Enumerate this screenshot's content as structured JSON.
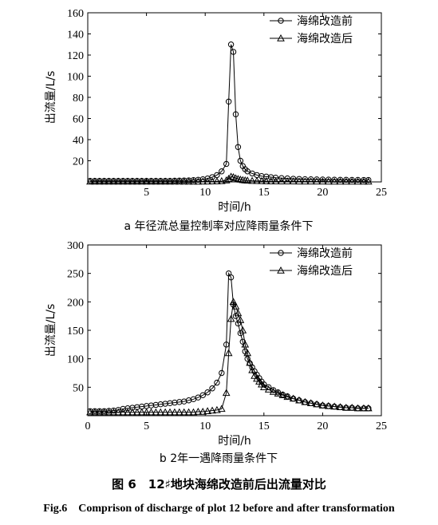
{
  "figure": {
    "caption_cn": "图 6　12♯地块海绵改造前后出流量对比",
    "caption_en": "Fig.6　Comprison of discharge of plot 12 before and after transformation"
  },
  "chart_data": [
    {
      "type": "line",
      "subtitle": "a 年径流总量控制率对应降雨量条件下",
      "xlabel": "时间/h",
      "ylabel": "出流量/L/s",
      "xlim": [
        0,
        25
      ],
      "ylim": [
        0,
        160
      ],
      "xticks": [
        5,
        10,
        15,
        20,
        25
      ],
      "yticks": [
        20,
        40,
        60,
        80,
        100,
        120,
        140,
        160
      ],
      "grid": false,
      "legend_position": "top-right",
      "series": [
        {
          "name": "海绵改造前",
          "marker": "circle",
          "x": [
            0.2,
            0.6,
            1.0,
            1.4,
            1.8,
            2.2,
            2.6,
            3.0,
            3.4,
            3.8,
            4.2,
            4.6,
            5.0,
            5.4,
            5.8,
            6.2,
            6.6,
            7.0,
            7.4,
            7.8,
            8.2,
            8.6,
            9.0,
            9.4,
            9.8,
            10.2,
            10.6,
            11.0,
            11.4,
            11.8,
            12.0,
            12.2,
            12.4,
            12.6,
            12.8,
            13.0,
            13.2,
            13.4,
            13.6,
            14.0,
            14.4,
            14.8,
            15.2,
            15.6,
            16.0,
            16.5,
            17.0,
            17.5,
            18.0,
            18.5,
            19.0,
            19.5,
            20.0,
            20.5,
            21.0,
            21.5,
            22.0,
            22.5,
            23.0,
            23.5,
            23.9
          ],
          "y": [
            1,
            1,
            1,
            1,
            1,
            1,
            1,
            1,
            1,
            1,
            1,
            1,
            1,
            1,
            1,
            1,
            1,
            1,
            1.2,
            1.3,
            1.4,
            1.5,
            1.7,
            2,
            2.5,
            3.2,
            4.5,
            6.5,
            10,
            17,
            76,
            130,
            123,
            64,
            33,
            20,
            15,
            12,
            10,
            8,
            6.5,
            5.5,
            5,
            4.5,
            4,
            3.6,
            3.3,
            3,
            2.8,
            2.6,
            2.5,
            2.4,
            2.3,
            2.2,
            2.1,
            2,
            2,
            1.9,
            1.9,
            1.8,
            1.8
          ]
        },
        {
          "name": "海绵改造后",
          "marker": "triangle",
          "x": [
            0.2,
            0.6,
            1.0,
            1.4,
            1.8,
            2.2,
            2.6,
            3.0,
            3.4,
            3.8,
            4.2,
            4.6,
            5.0,
            5.4,
            5.8,
            6.2,
            6.6,
            7.0,
            7.4,
            7.8,
            8.2,
            8.6,
            9.0,
            9.4,
            9.8,
            10.2,
            10.6,
            11.0,
            11.4,
            11.8,
            12.0,
            12.2,
            12.4,
            12.6,
            12.8,
            13.0,
            13.2,
            13.4,
            13.6,
            14.0,
            14.4,
            14.8,
            15.2,
            15.6,
            16.0,
            16.5,
            17.0,
            17.5,
            18.0,
            18.5,
            19.0,
            19.5,
            20.0,
            20.5,
            21.0,
            21.5,
            22.0,
            22.5,
            23.0,
            23.5,
            23.9
          ],
          "y": [
            0.3,
            0.3,
            0.3,
            0.3,
            0.3,
            0.3,
            0.3,
            0.3,
            0.3,
            0.3,
            0.3,
            0.3,
            0.3,
            0.3,
            0.3,
            0.3,
            0.3,
            0.3,
            0.3,
            0.3,
            0.3,
            0.3,
            0.3,
            0.3,
            0.4,
            0.4,
            0.5,
            0.6,
            0.8,
            1.5,
            3,
            5,
            4.5,
            3.5,
            2.8,
            2.2,
            1.8,
            1.5,
            1.3,
            1,
            0.9,
            0.8,
            0.7,
            0.6,
            0.6,
            0.5,
            0.5,
            0.5,
            0.4,
            0.4,
            0.4,
            0.4,
            0.4,
            0.3,
            0.3,
            0.3,
            0.3,
            0.3,
            0.3,
            0.3,
            0.3
          ]
        }
      ]
    },
    {
      "type": "line",
      "subtitle": "b 2年一遇降雨量条件下",
      "xlabel": "时间/h",
      "ylabel": "出流量/L/s",
      "xlim": [
        0,
        25
      ],
      "ylim": [
        0,
        300
      ],
      "xticks": [
        0,
        5,
        10,
        15,
        20,
        25
      ],
      "yticks": [
        50,
        100,
        150,
        200,
        250,
        300
      ],
      "grid": false,
      "legend_position": "top-right",
      "series": [
        {
          "name": "海绵改造前",
          "marker": "circle",
          "x": [
            0.2,
            0.6,
            1.0,
            1.4,
            1.8,
            2.2,
            2.6,
            3.0,
            3.4,
            3.8,
            4.2,
            4.6,
            5.0,
            5.4,
            5.8,
            6.2,
            6.6,
            7.0,
            7.4,
            7.8,
            8.2,
            8.6,
            9.0,
            9.4,
            9.8,
            10.2,
            10.6,
            11.0,
            11.4,
            11.8,
            12.0,
            12.2,
            12.4,
            12.6,
            12.8,
            13.0,
            13.2,
            13.4,
            13.6,
            13.8,
            14.0,
            14.2,
            14.4,
            14.6,
            14.8,
            15.0,
            15.4,
            15.8,
            16.2,
            16.6,
            17.0,
            17.5,
            18.0,
            18.5,
            19.0,
            19.5,
            20.0,
            20.5,
            21.0,
            21.5,
            22.0,
            22.5,
            23.0,
            23.5,
            23.9
          ],
          "y": [
            8,
            8,
            8,
            8,
            8.5,
            9,
            10,
            12,
            13,
            14,
            15,
            16,
            17,
            18,
            19,
            20,
            21,
            22,
            23,
            24,
            25,
            27,
            29,
            32,
            36,
            41,
            48,
            58,
            75,
            125,
            250,
            243,
            195,
            175,
            162,
            145,
            130,
            113,
            100,
            92,
            85,
            78,
            72,
            66,
            60,
            55,
            50,
            45,
            41,
            37,
            34,
            30,
            27,
            24,
            22,
            20,
            18,
            17,
            16,
            15,
            14,
            14,
            13,
            13,
            13
          ]
        },
        {
          "name": "海绵改造后",
          "marker": "triangle",
          "x": [
            0.2,
            0.6,
            1.0,
            1.4,
            1.8,
            2.2,
            2.6,
            3.0,
            3.4,
            3.8,
            4.2,
            4.6,
            5.0,
            5.4,
            5.8,
            6.2,
            6.6,
            7.0,
            7.4,
            7.8,
            8.2,
            8.6,
            9.0,
            9.4,
            9.8,
            10.2,
            10.6,
            11.0,
            11.4,
            11.8,
            12.0,
            12.2,
            12.4,
            12.6,
            12.8,
            13.0,
            13.2,
            13.4,
            13.6,
            13.8,
            14.0,
            14.2,
            14.4,
            14.6,
            14.8,
            15.0,
            15.4,
            15.8,
            16.2,
            16.6,
            17.0,
            17.5,
            18.0,
            18.5,
            19.0,
            19.5,
            20.0,
            20.5,
            21.0,
            21.5,
            22.0,
            22.5,
            23.0,
            23.5,
            23.9
          ],
          "y": [
            6,
            6,
            6,
            6,
            6,
            6,
            6,
            6,
            6,
            6,
            6,
            6,
            6,
            6,
            6,
            6,
            6,
            6,
            6,
            6,
            6,
            6,
            6,
            7,
            7,
            8,
            9,
            10,
            12,
            40,
            110,
            170,
            200,
            192,
            180,
            168,
            150,
            125,
            110,
            93,
            80,
            70,
            65,
            60,
            55,
            50,
            46,
            42,
            39,
            36,
            33,
            30,
            27,
            24,
            22,
            20,
            18,
            17,
            16,
            15,
            14,
            14,
            13,
            13,
            13
          ]
        }
      ]
    }
  ]
}
